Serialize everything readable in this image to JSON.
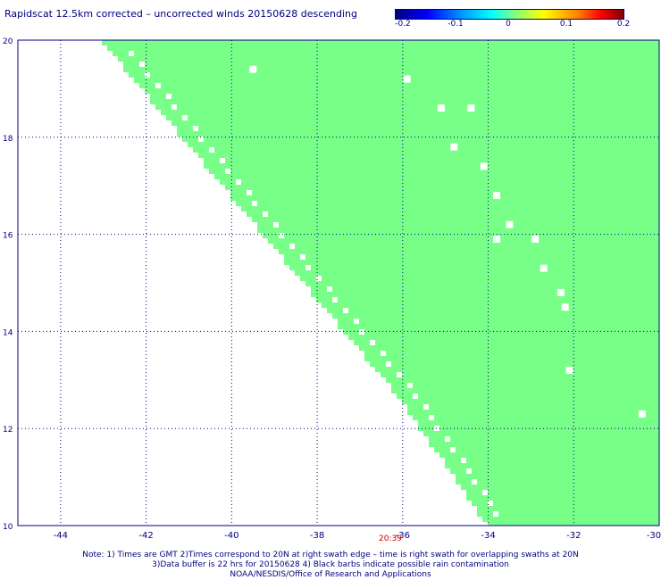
{
  "title": "Rapidscat 12.5km corrected – uncorrected winds 20150628 descending",
  "colorbar": {
    "labels": [
      "-0.2",
      "-0.1",
      "0",
      "0.1",
      "0.2"
    ],
    "values": [
      -0.2,
      -0.1,
      0,
      0.1,
      0.2
    ]
  },
  "axes": {
    "lon_ticks": [
      "-44",
      "-42",
      "-40",
      "-38",
      "-36",
      "-34",
      "-32",
      "-30"
    ],
    "lon_values": [
      -44,
      -42,
      -40,
      -38,
      -36,
      -34,
      -32,
      -30
    ],
    "lat_ticks": [
      "20",
      "18",
      "16",
      "14",
      "12",
      "10"
    ],
    "lat_values": [
      20,
      18,
      16,
      14,
      12,
      10
    ],
    "lon_range": [
      -45,
      -30
    ],
    "lat_range": [
      10,
      20
    ]
  },
  "swath": {
    "fill_color": "#78ff88",
    "edge": [
      [
        -43.0,
        20.0
      ],
      [
        -36.0,
        12.6
      ],
      [
        -34.0,
        10.0
      ]
    ],
    "east_edge_lon": -30.0,
    "holes": [
      [
        -39.5,
        19.4
      ],
      [
        -35.9,
        19.2
      ],
      [
        -35.1,
        18.6
      ],
      [
        -34.4,
        18.6
      ],
      [
        -34.8,
        17.8
      ],
      [
        -34.1,
        17.4
      ],
      [
        -33.8,
        16.8
      ],
      [
        -33.5,
        16.2
      ],
      [
        -33.8,
        15.9
      ],
      [
        -32.9,
        15.9
      ],
      [
        -32.7,
        15.3
      ],
      [
        -32.3,
        14.8
      ],
      [
        -32.2,
        14.5
      ],
      [
        -32.1,
        13.2
      ],
      [
        -30.4,
        12.3
      ]
    ]
  },
  "time_label": "20:39",
  "notes": [
    "Note: 1) Times are GMT 2)Times correspond to 20N at right swath edge – time is right swath for overlapping swaths at 20N",
    "3)Data buffer is 22 hrs for 20150628 4) Black barbs indicate possible rain contamination",
    "NOAA/NESDIS/Office of Research and Applications"
  ]
}
